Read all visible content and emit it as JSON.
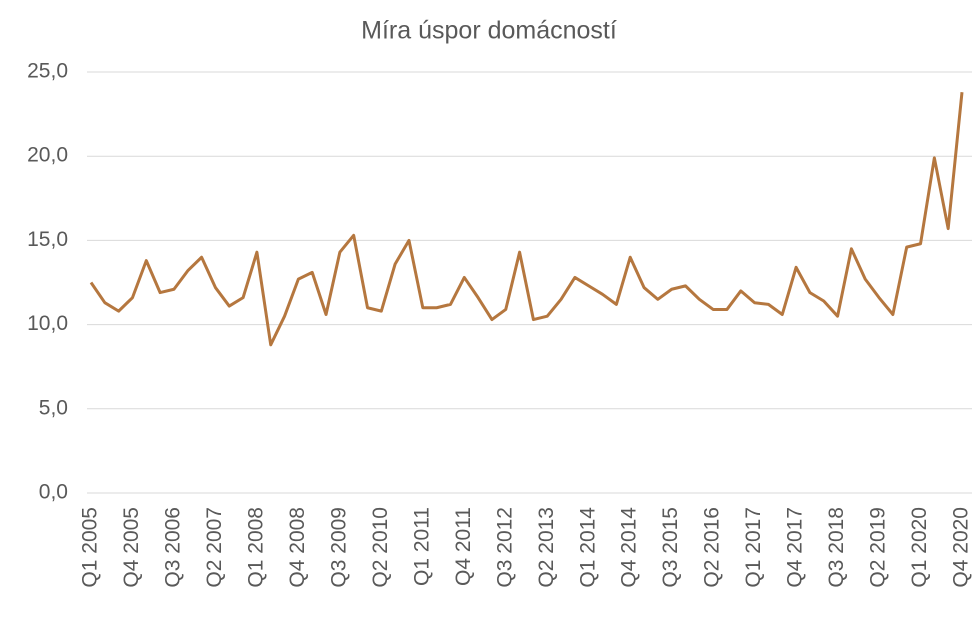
{
  "chart_data": {
    "type": "line",
    "title": "Míra úspor domácností",
    "categories": [
      "Q1 2005",
      null,
      null,
      "Q4 2005",
      null,
      null,
      "Q3 2006",
      null,
      null,
      "Q2 2007",
      null,
      null,
      "Q1 2008",
      null,
      null,
      "Q4 2008",
      null,
      null,
      "Q3 2009",
      null,
      null,
      "Q2 2010",
      null,
      null,
      "Q1 2011",
      null,
      null,
      "Q4 2011",
      null,
      null,
      "Q3 2012",
      null,
      null,
      "Q2 2013",
      null,
      null,
      "Q1 2014",
      null,
      null,
      "Q4 2014",
      null,
      null,
      "Q3 2015",
      null,
      null,
      "Q2 2016",
      null,
      null,
      "Q1 2017",
      null,
      null,
      "Q4 2017",
      null,
      null,
      "Q3 2018",
      null,
      null,
      "Q2 2019",
      null,
      null,
      "Q1 2020",
      null,
      null,
      "Q4 2020"
    ],
    "values": [
      12.5,
      11.3,
      10.8,
      11.6,
      13.8,
      11.9,
      12.1,
      13.2,
      14.0,
      12.2,
      11.1,
      11.6,
      14.3,
      8.8,
      10.5,
      12.7,
      13.1,
      10.6,
      14.3,
      15.3,
      11.0,
      10.8,
      13.6,
      15.0,
      11.0,
      11.0,
      11.2,
      12.8,
      11.6,
      10.3,
      10.9,
      14.3,
      10.3,
      10.5,
      11.5,
      12.8,
      12.3,
      11.8,
      11.2,
      14.0,
      12.2,
      11.5,
      12.1,
      12.3,
      11.5,
      10.9,
      10.9,
      12.0,
      11.3,
      11.2,
      10.6,
      13.4,
      11.9,
      11.4,
      10.5,
      14.5,
      12.7,
      11.6,
      10.6,
      14.6,
      14.8,
      19.9,
      15.7,
      23.8
    ],
    "color": "#b5773f",
    "ylim": [
      0,
      25
    ],
    "yticks": [
      {
        "value": 0,
        "label": "0,0"
      },
      {
        "value": 5,
        "label": "5,0"
      },
      {
        "value": 10,
        "label": "10,0"
      },
      {
        "value": 15,
        "label": "15,0"
      },
      {
        "value": 20,
        "label": "20,0"
      },
      {
        "value": 25,
        "label": "25,0"
      }
    ],
    "grid": true
  }
}
